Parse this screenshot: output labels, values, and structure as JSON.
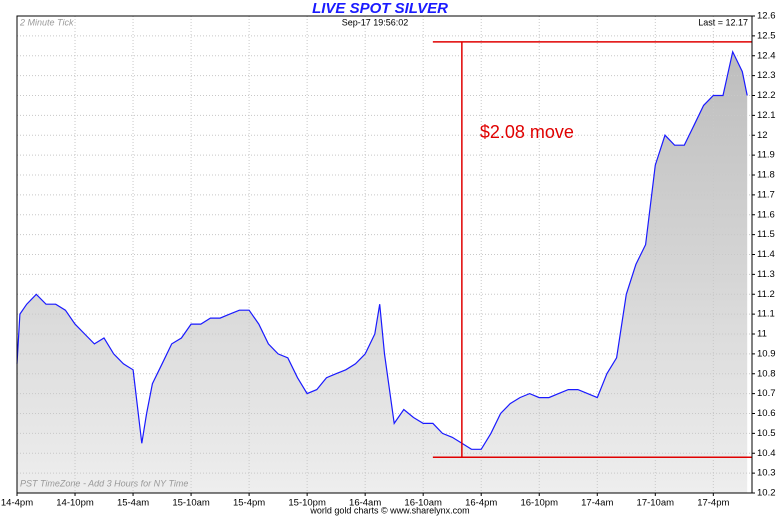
{
  "chart_data": {
    "type": "line",
    "title": "LIVE SPOT SILVER",
    "subtitle": "Sep-17  19:56:02",
    "interval_label": "2 Minute Tick",
    "last_label": "Last = 12.17",
    "timezone_note": "PST TimeZone - Add 3 Hours for NY Time",
    "footer": "world gold charts © www.sharelynx.com",
    "xlim": [
      0,
      76
    ],
    "xticks": [
      {
        "value": 0,
        "label": "14-4pm"
      },
      {
        "value": 6,
        "label": "14-10pm"
      },
      {
        "value": 12,
        "label": "15-4am"
      },
      {
        "value": 18,
        "label": "15-10am"
      },
      {
        "value": 24,
        "label": "15-4pm"
      },
      {
        "value": 30,
        "label": "15-10pm"
      },
      {
        "value": 36,
        "label": "16-4am"
      },
      {
        "value": 42,
        "label": "16-10am"
      },
      {
        "value": 48,
        "label": "16-4pm"
      },
      {
        "value": 54,
        "label": "16-10pm"
      },
      {
        "value": 60,
        "label": "17-4am"
      },
      {
        "value": 66,
        "label": "17-10am"
      },
      {
        "value": 72,
        "label": "17-4pm"
      }
    ],
    "ylim": [
      10.2,
      12.6
    ],
    "yticks": [
      10.2,
      10.3,
      10.4,
      10.5,
      10.6,
      10.7,
      10.8,
      10.9,
      11,
      11.1,
      11.2,
      11.3,
      11.4,
      11.5,
      11.6,
      11.7,
      11.8,
      11.9,
      12,
      12.1,
      12.2,
      12.3,
      12.4,
      12.5,
      12.6
    ],
    "grid": true,
    "x": [
      0,
      0.3,
      1,
      2,
      3,
      4,
      5,
      6,
      7,
      8,
      9,
      10,
      11,
      12,
      12.9,
      13.4,
      14,
      15,
      16,
      17,
      18,
      19,
      20,
      21,
      22,
      23,
      24,
      25,
      26,
      27,
      28,
      29,
      30,
      31,
      32,
      33,
      34,
      35,
      36,
      37,
      37.5,
      38,
      39,
      40,
      41,
      42,
      43,
      44,
      45,
      46,
      47,
      48,
      49,
      50,
      51,
      52,
      53,
      54,
      55,
      56,
      57,
      58,
      59,
      60,
      61,
      62,
      63,
      64,
      65,
      66,
      67,
      68,
      69,
      70,
      71,
      72,
      73,
      74,
      75,
      75.5
    ],
    "series": [
      {
        "name": "Spot Silver",
        "color": "#1a1aff",
        "values": [
          10.85,
          11.1,
          11.15,
          11.2,
          11.15,
          11.15,
          11.12,
          11.05,
          11.0,
          10.95,
          10.98,
          10.9,
          10.85,
          10.82,
          10.45,
          10.6,
          10.75,
          10.85,
          10.95,
          10.98,
          11.05,
          11.05,
          11.08,
          11.08,
          11.1,
          11.12,
          11.12,
          11.05,
          10.95,
          10.9,
          10.88,
          10.78,
          10.7,
          10.72,
          10.78,
          10.8,
          10.82,
          10.85,
          10.9,
          11.0,
          11.15,
          10.9,
          10.55,
          10.62,
          10.58,
          10.55,
          10.55,
          10.5,
          10.48,
          10.45,
          10.42,
          10.42,
          10.5,
          10.6,
          10.65,
          10.68,
          10.7,
          10.68,
          10.68,
          10.7,
          10.72,
          10.72,
          10.7,
          10.68,
          10.8,
          10.88,
          11.2,
          11.35,
          11.45,
          11.85,
          12.0,
          11.95,
          11.95,
          12.05,
          12.15,
          12.2,
          12.2,
          12.42,
          12.32,
          12.2
        ]
      }
    ],
    "reference_lines": {
      "color": "#e00000",
      "hlines": [
        12.47,
        10.38
      ],
      "x_start": 43,
      "vline_x": 46
    },
    "annotation": "$2.08 move"
  }
}
